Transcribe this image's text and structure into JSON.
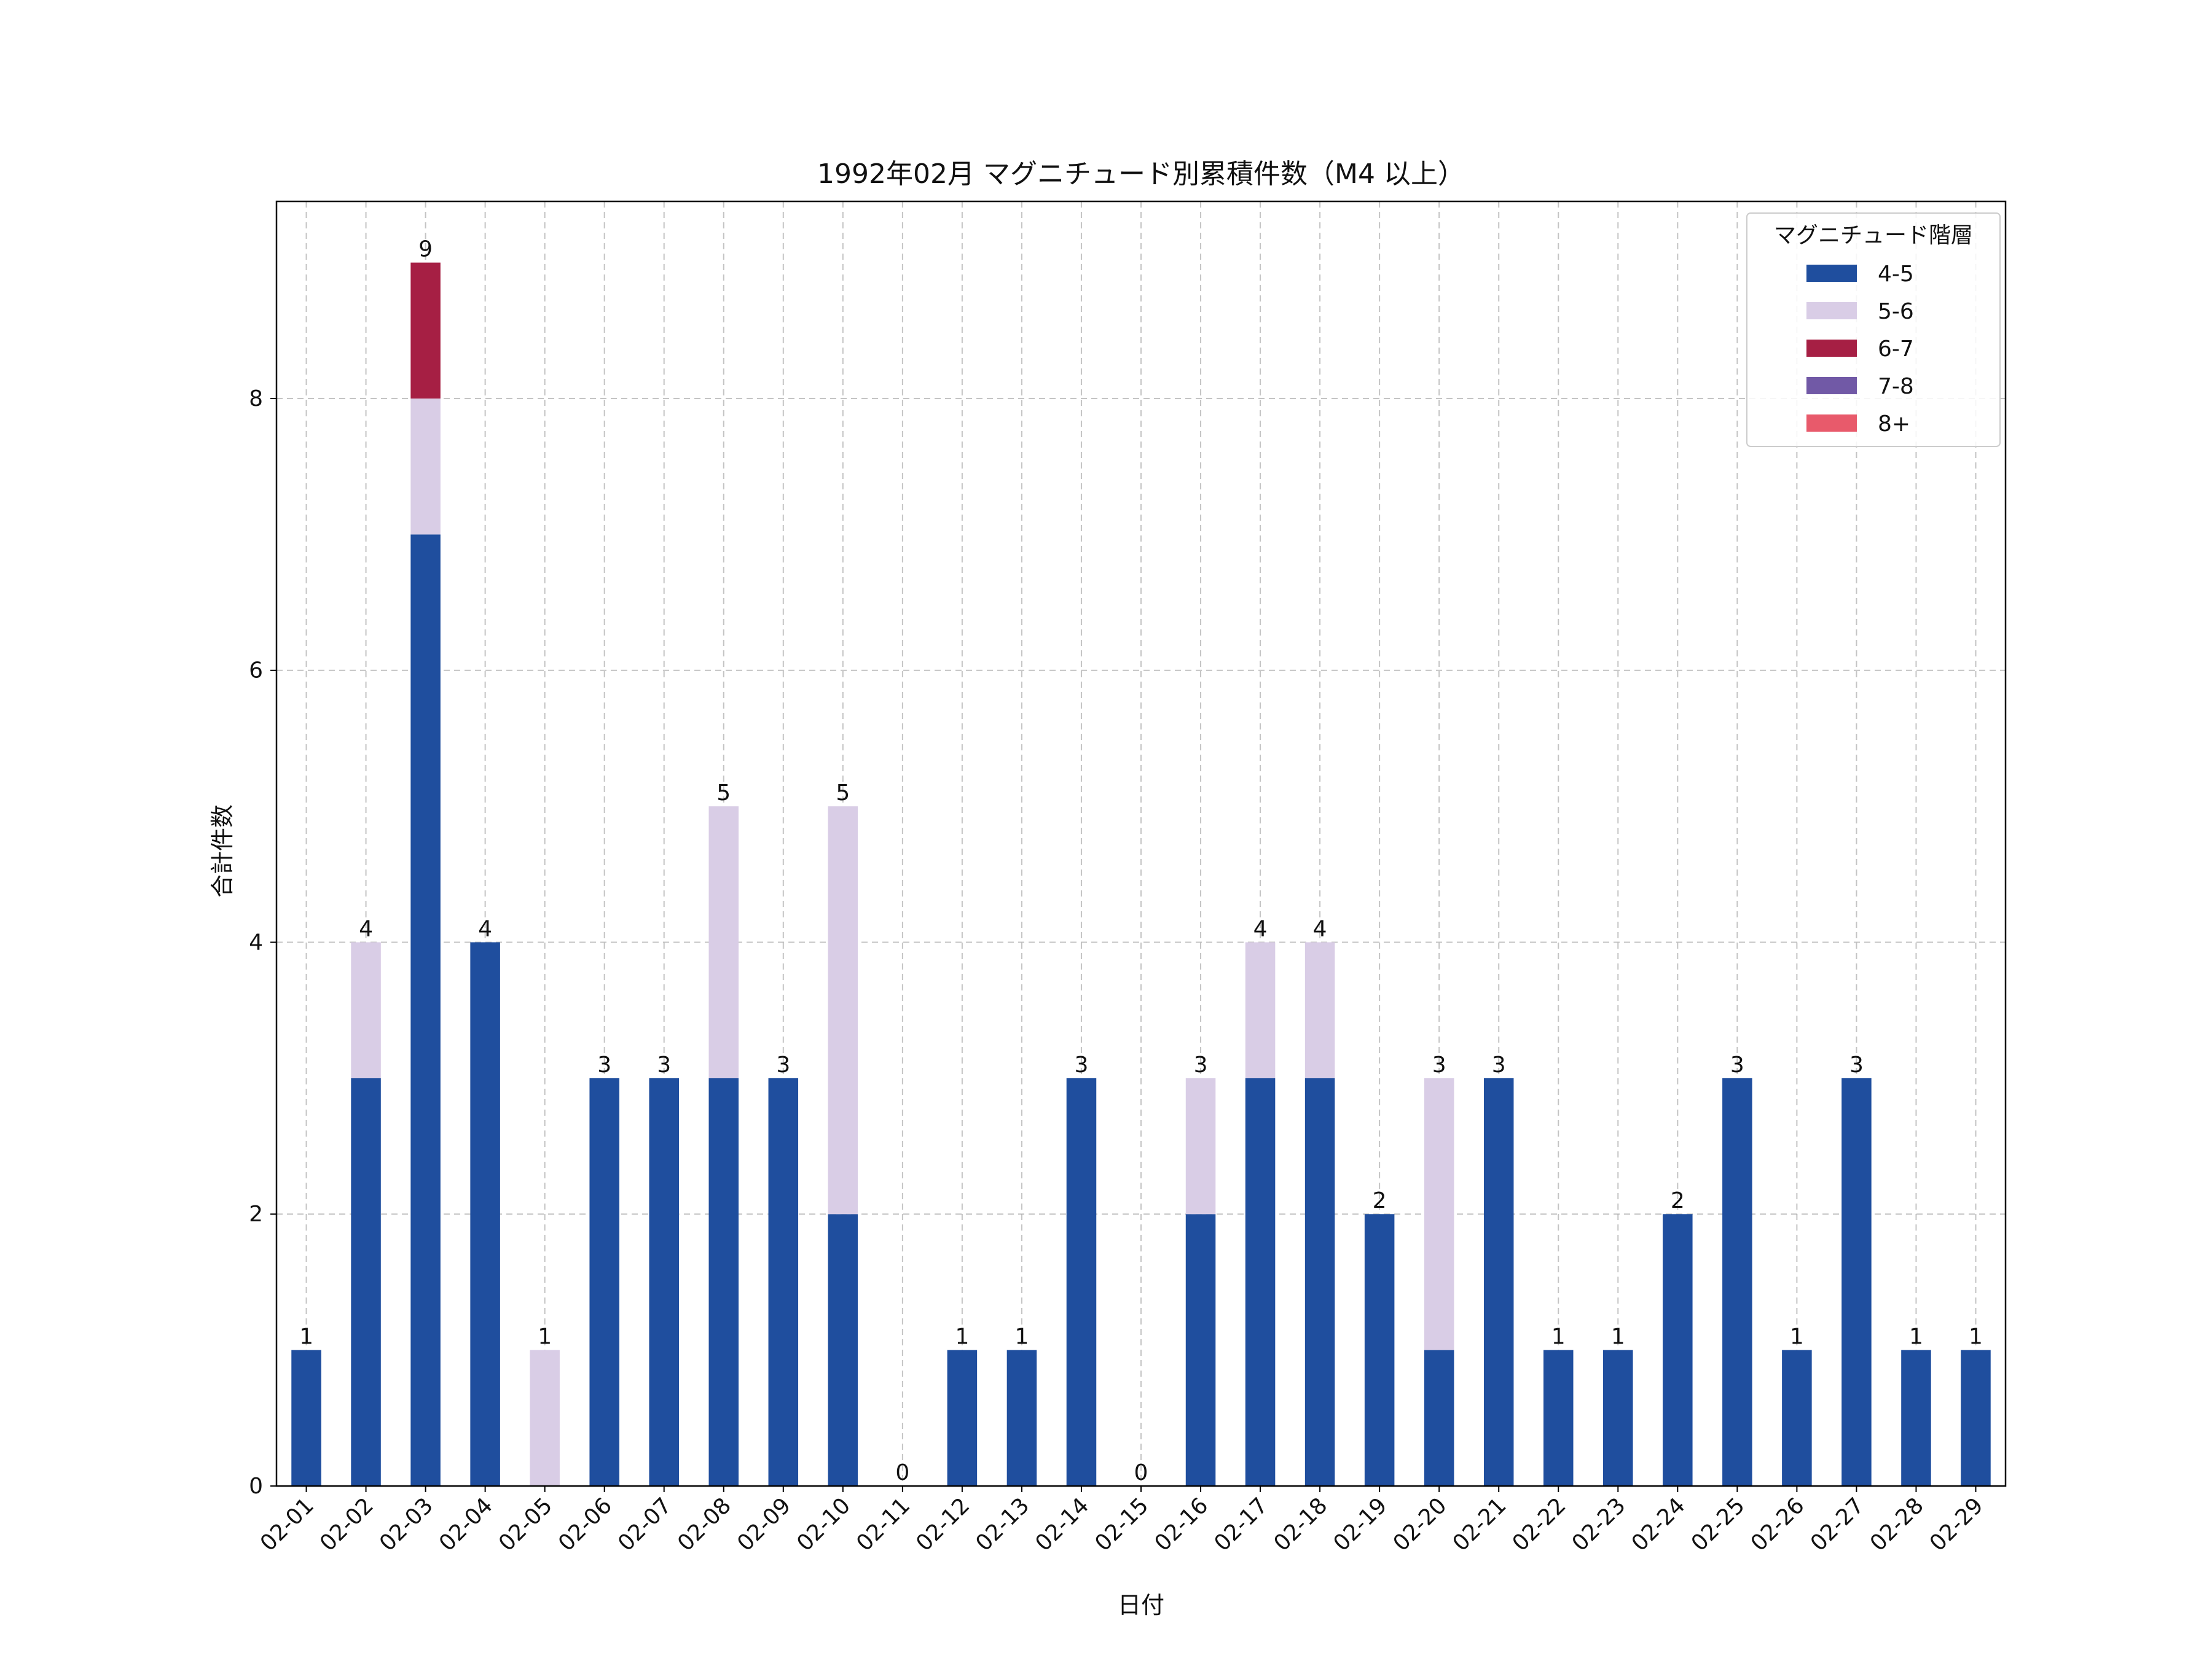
{
  "chart_data": {
    "type": "bar",
    "stacked": true,
    "title": "1992年02月 マグニチュード別累積件数（M4 以上）",
    "xlabel": "日付",
    "ylabel": "合計件数",
    "ylim": [
      0,
      9.45
    ],
    "yticks": [
      0,
      2,
      4,
      6,
      8
    ],
    "grid": true,
    "legend": {
      "title": "マグニチュード階層",
      "position": "top-right"
    },
    "categories": [
      "02-01",
      "02-02",
      "02-03",
      "02-04",
      "02-05",
      "02-06",
      "02-07",
      "02-08",
      "02-09",
      "02-10",
      "02-11",
      "02-12",
      "02-13",
      "02-14",
      "02-15",
      "02-16",
      "02-17",
      "02-18",
      "02-19",
      "02-20",
      "02-21",
      "02-22",
      "02-23",
      "02-24",
      "02-25",
      "02-26",
      "02-27",
      "02-28",
      "02-29"
    ],
    "series": [
      {
        "name": "4-5",
        "color": "#1f4e9e",
        "values": [
          1,
          3,
          7,
          4,
          0,
          3,
          3,
          3,
          3,
          2,
          0,
          1,
          1,
          3,
          0,
          2,
          3,
          3,
          2,
          1,
          3,
          1,
          1,
          2,
          3,
          1,
          3,
          1,
          1
        ]
      },
      {
        "name": "5-6",
        "color": "#d9cde6",
        "values": [
          0,
          1,
          1,
          0,
          1,
          0,
          0,
          2,
          0,
          3,
          0,
          0,
          0,
          0,
          0,
          1,
          1,
          1,
          0,
          2,
          0,
          0,
          0,
          0,
          0,
          0,
          0,
          0,
          0
        ]
      },
      {
        "name": "6-7",
        "color": "#a61f44",
        "values": [
          0,
          0,
          1,
          0,
          0,
          0,
          0,
          0,
          0,
          0,
          0,
          0,
          0,
          0,
          0,
          0,
          0,
          0,
          0,
          0,
          0,
          0,
          0,
          0,
          0,
          0,
          0,
          0,
          0
        ]
      },
      {
        "name": "7-8",
        "color": "#7159a6",
        "values": [
          0,
          0,
          0,
          0,
          0,
          0,
          0,
          0,
          0,
          0,
          0,
          0,
          0,
          0,
          0,
          0,
          0,
          0,
          0,
          0,
          0,
          0,
          0,
          0,
          0,
          0,
          0,
          0,
          0
        ]
      },
      {
        "name": "8+",
        "color": "#e85a6b",
        "values": [
          0,
          0,
          0,
          0,
          0,
          0,
          0,
          0,
          0,
          0,
          0,
          0,
          0,
          0,
          0,
          0,
          0,
          0,
          0,
          0,
          0,
          0,
          0,
          0,
          0,
          0,
          0,
          0,
          0
        ]
      }
    ],
    "totals": [
      1,
      4,
      9,
      4,
      1,
      3,
      3,
      5,
      3,
      5,
      0,
      1,
      1,
      3,
      0,
      3,
      4,
      4,
      2,
      3,
      3,
      1,
      1,
      2,
      3,
      1,
      3,
      1,
      1
    ]
  }
}
